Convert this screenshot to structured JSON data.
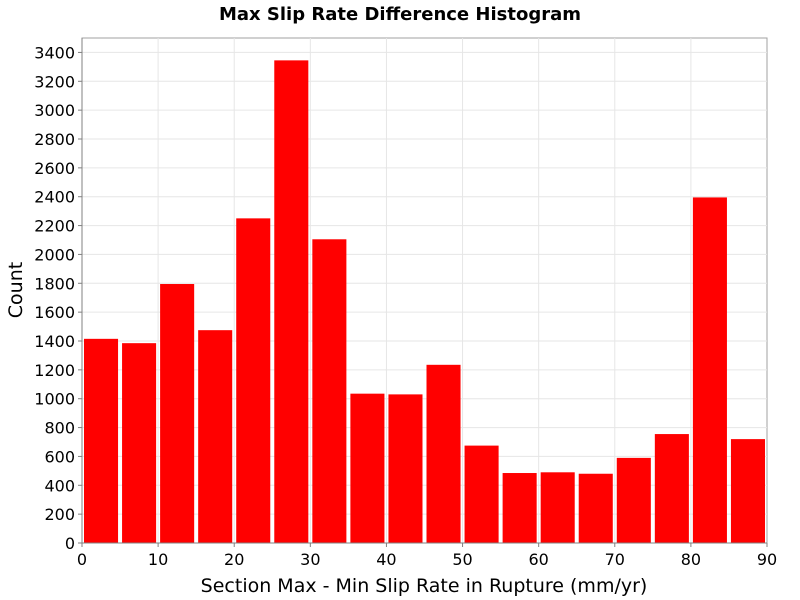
{
  "chart_data": {
    "type": "bar",
    "title": "Max Slip Rate Difference Histogram",
    "xlabel": "Section Max - Min Slip Rate in Rupture (mm/yr)",
    "ylabel": "Count",
    "xlim": [
      0,
      90
    ],
    "ylim": [
      0,
      3500
    ],
    "xticks": [
      0,
      10,
      20,
      30,
      40,
      50,
      60,
      70,
      80,
      90
    ],
    "yticks": [
      0,
      200,
      400,
      600,
      800,
      1000,
      1200,
      1400,
      1600,
      1800,
      2000,
      2200,
      2400,
      2600,
      2800,
      3000,
      3200,
      3400
    ],
    "bin_width": 5,
    "bins": [
      {
        "x": 0,
        "value": 1415
      },
      {
        "x": 5,
        "value": 1385
      },
      {
        "x": 10,
        "value": 1795
      },
      {
        "x": 15,
        "value": 1475
      },
      {
        "x": 20,
        "value": 2250
      },
      {
        "x": 25,
        "value": 3345
      },
      {
        "x": 30,
        "value": 2105
      },
      {
        "x": 35,
        "value": 1035
      },
      {
        "x": 40,
        "value": 1030
      },
      {
        "x": 45,
        "value": 1235
      },
      {
        "x": 50,
        "value": 675
      },
      {
        "x": 55,
        "value": 485
      },
      {
        "x": 60,
        "value": 490
      },
      {
        "x": 65,
        "value": 480
      },
      {
        "x": 70,
        "value": 590
      },
      {
        "x": 75,
        "value": 755
      },
      {
        "x": 80,
        "value": 2395
      },
      {
        "x": 85,
        "value": 720
      }
    ],
    "bar_color": "#ff0000",
    "grid": true
  }
}
